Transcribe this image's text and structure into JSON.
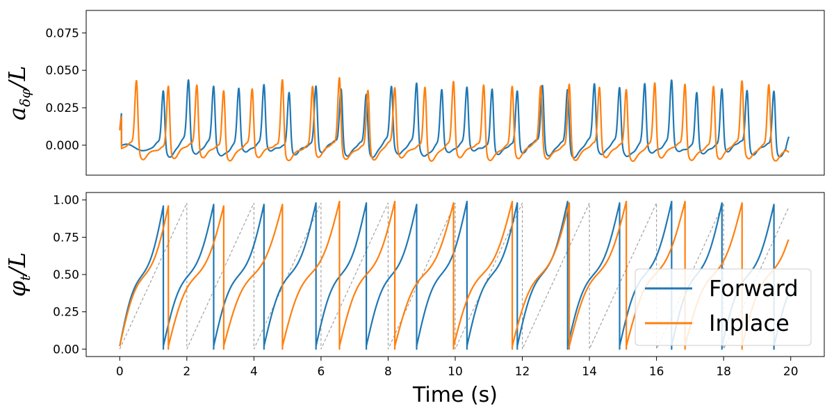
{
  "chart_data": [
    {
      "type": "line",
      "panel": "top",
      "ylabel": "a_δφ/L",
      "ylabel_main": "a",
      "ylabel_sub": "δφ",
      "ylabel_tail": "/L",
      "xlabel": "",
      "xlim": [
        -1,
        21
      ],
      "ylim": [
        -0.02,
        0.09
      ],
      "yticks": [
        0.0,
        0.025,
        0.05,
        0.075
      ],
      "ytick_labels": [
        "0.000",
        "0.025",
        "0.050",
        "0.075"
      ],
      "show_xticks": false,
      "series": [
        {
          "name": "Forward",
          "color": "#1f77b4",
          "kind": "spikes",
          "peak_times": [
            1.3,
            2.05,
            2.8,
            3.55,
            4.3,
            5.05,
            5.85,
            6.6,
            7.35,
            8.1,
            8.85,
            9.6,
            10.35,
            11.1,
            11.85,
            12.6,
            13.35,
            14.15,
            14.9,
            15.65,
            16.45,
            17.2,
            17.95,
            18.7,
            19.5
          ],
          "peak_values": [
            0.037,
            0.041,
            0.038,
            0.037,
            0.039,
            0.037,
            0.04,
            0.038,
            0.035,
            0.037,
            0.04,
            0.036,
            0.037,
            0.039,
            0.037,
            0.04,
            0.038,
            0.039,
            0.037,
            0.04,
            0.041,
            0.036,
            0.038,
            0.037,
            0.038
          ],
          "baseline": -0.002,
          "end_value": 0.006
        },
        {
          "name": "Inplace",
          "color": "#ff7f0e",
          "kind": "spikes",
          "peak_times": [
            0.5,
            1.45,
            2.3,
            3.1,
            3.95,
            4.85,
            5.75,
            6.55,
            7.4,
            8.2,
            9.1,
            9.95,
            10.85,
            11.7,
            12.55,
            13.4,
            14.3,
            15.1,
            15.95,
            16.85,
            17.7,
            18.55,
            19.35
          ],
          "peak_values": [
            0.043,
            0.041,
            0.04,
            0.038,
            0.037,
            0.045,
            0.04,
            0.045,
            0.038,
            0.037,
            0.04,
            0.042,
            0.041,
            0.04,
            0.039,
            0.042,
            0.038,
            0.038,
            0.041,
            0.041,
            0.04,
            0.042,
            0.041
          ],
          "baseline": -0.004,
          "end_value": -0.005
        }
      ]
    },
    {
      "type": "line",
      "panel": "bottom",
      "ylabel": "φ_t/L",
      "ylabel_main": "φ",
      "ylabel_sub": "t",
      "ylabel_tail": "/L",
      "xlabel": "Time (s)",
      "xlim": [
        -1,
        21
      ],
      "ylim": [
        -0.05,
        1.05
      ],
      "xticks": [
        0,
        2,
        4,
        6,
        8,
        10,
        12,
        14,
        16,
        18,
        20
      ],
      "xtick_labels": [
        "0",
        "2",
        "4",
        "6",
        "8",
        "10",
        "12",
        "14",
        "16",
        "18",
        "20"
      ],
      "yticks": [
        0.0,
        0.25,
        0.5,
        0.75,
        1.0
      ],
      "ytick_labels": [
        "0.00",
        "0.25",
        "0.50",
        "0.75",
        "1.00"
      ],
      "legend": {
        "placement": "bottom-right",
        "entries": [
          "Forward",
          "Inplace"
        ]
      },
      "series": [
        {
          "name": "Forward",
          "color": "#1f77b4",
          "kind": "sawtooth",
          "reset_times": [
            0,
            1.3,
            2.8,
            4.3,
            5.85,
            7.35,
            8.85,
            10.35,
            11.85,
            13.35,
            14.9,
            16.45,
            17.95,
            19.5
          ],
          "peak_values": [
            0.96,
            0.97,
            0.97,
            0.98,
            0.98,
            0.97,
            0.99,
            0.98,
            0.99,
            0.98,
            0.99,
            0.98,
            0.97
          ],
          "end_value": 0.86
        },
        {
          "name": "Inplace",
          "color": "#ff7f0e",
          "kind": "sawtooth",
          "reset_times": [
            0,
            1.45,
            3.1,
            4.85,
            6.55,
            8.2,
            9.95,
            11.7,
            13.4,
            15.1,
            16.85,
            18.55
          ],
          "peak_values": [
            0.96,
            0.96,
            0.97,
            0.99,
            0.99,
            0.98,
            0.99,
            0.98,
            0.99,
            0.99,
            0.98,
            1.0
          ],
          "end_value": 0.73
        },
        {
          "name": "reference",
          "color": "#999999",
          "kind": "linear-reset",
          "period": 2,
          "peak_value": 0.98,
          "dashed": true
        }
      ]
    }
  ]
}
